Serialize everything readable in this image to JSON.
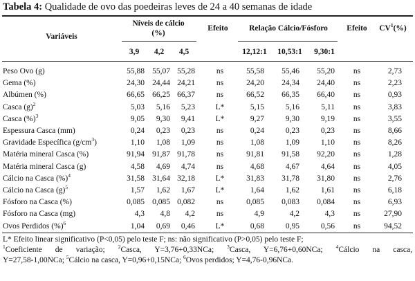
{
  "caption": {
    "label": "Tabela 4:",
    "text": "Qualidade de ovo das poedeiras leves de 24 a 40 semanas de idade"
  },
  "header": {
    "variaveis": "Variáveis",
    "niveis_line1": "Níveis de cálcio",
    "niveis_line2": "(%)",
    "efeito1": "Efeito",
    "relacao": "Relação Cálcio/Fósforo",
    "efeito2": "Efeito",
    "cv": "CV",
    "cv_sup": "1",
    "cv_suffix": "(%)",
    "cal_levels": [
      "3,9",
      "4,2",
      "4,5"
    ],
    "ratios": [
      "12,12:1",
      "10,53:1",
      "9,30:1"
    ]
  },
  "rows": [
    {
      "label": "Peso Ovo (g)",
      "sup": "",
      "ca": [
        "55,88",
        "55,07",
        "55,28"
      ],
      "ef1": "ns",
      "rel": [
        "55,58",
        "55,46",
        "55,20"
      ],
      "ef2": "ns",
      "cv": "2,73"
    },
    {
      "label": "Gema (%)",
      "sup": "",
      "ca": [
        "24,30",
        "24,44",
        "24,21"
      ],
      "ef1": "ns",
      "rel": [
        "24,20",
        "24,34",
        "24,40"
      ],
      "ef2": "ns",
      "cv": "2,23"
    },
    {
      "label": "Albúmen (%)",
      "sup": "",
      "ca": [
        "66,65",
        "66,25",
        "66,37"
      ],
      "ef1": "ns",
      "rel": [
        "66,52",
        "66,35",
        "66,40"
      ],
      "ef2": "ns",
      "cv": "0,93"
    },
    {
      "label": "Casca (g)",
      "sup": "2",
      "ca": [
        "5,03",
        "5,16",
        "5,23"
      ],
      "ef1": "L*",
      "rel": [
        "5,15",
        "5,16",
        "5,11"
      ],
      "ef2": "ns",
      "cv": "3,83"
    },
    {
      "label": "Casca (%)",
      "sup": "3",
      "ca": [
        "9,05",
        "9,30",
        "9,41"
      ],
      "ef1": "L*",
      "rel": [
        "9,27",
        "9,30",
        "9,19"
      ],
      "ef2": "ns",
      "cv": "3,55"
    },
    {
      "label": "Espessura Casca (mm)",
      "sup": "",
      "ca": [
        "0,24",
        "0,23",
        "0,23"
      ],
      "ef1": "ns",
      "rel": [
        "0,24",
        "0,23",
        "0,23"
      ],
      "ef2": "ns",
      "cv": "8,66"
    },
    {
      "label": "Gravidade Específica (g/cm",
      "sup": "3",
      "label_tail": ")",
      "ca": [
        "1,10",
        "1,08",
        "1,09"
      ],
      "ef1": "ns",
      "rel": [
        "1,08",
        "1,09",
        "1,10"
      ],
      "ef2": "ns",
      "cv": "8,26"
    },
    {
      "label": "Matéria mineral Casca (%)",
      "sup": "",
      "ca": [
        "91,94",
        "91,87",
        "91,78"
      ],
      "ef1": "ns",
      "rel": [
        "91,81",
        "91,58",
        "92,20"
      ],
      "ef2": "ns",
      "cv": "1,28"
    },
    {
      "label": "Matéria mineral Casca (g)",
      "sup": "",
      "ca": [
        "4,58",
        "4,69",
        "4,74"
      ],
      "ef1": "ns",
      "rel": [
        "4,68",
        "4,67",
        "4,64"
      ],
      "ef2": "ns",
      "cv": "4,05"
    },
    {
      "label": "Cálcio na Casca (%)",
      "sup": "4",
      "ca": [
        "31,58",
        "31,64",
        "32,18"
      ],
      "ef1": "L*",
      "rel": [
        "31,83",
        "31,78",
        "31,80"
      ],
      "ef2": "ns",
      "cv": "2,76"
    },
    {
      "label": "Cálcio na Casca (g)",
      "sup": "5",
      "ca": [
        "1,57",
        "1,62",
        "1,67"
      ],
      "ef1": "L*",
      "rel": [
        "1,64",
        "1,62",
        "1,61"
      ],
      "ef2": "ns",
      "cv": "6,18"
    },
    {
      "label": "Fósforo na Casca (%)",
      "sup": "",
      "ca": [
        "0,085",
        "0,085",
        "0,082"
      ],
      "ef1": "ns",
      "rel": [
        "0,085",
        "0,083",
        "0,084"
      ],
      "ef2": "ns",
      "cv": "6,93"
    },
    {
      "label": "Fósforo na Casca (mg)",
      "sup": "",
      "ca": [
        "4,3",
        "4,8",
        "4,2"
      ],
      "ef1": "ns",
      "rel": [
        "4,9",
        "4,2",
        "4,3"
      ],
      "ef2": "ns",
      "cv": "27,90"
    },
    {
      "label": "Ovos Perdidos (%)",
      "sup": "6",
      "ca": [
        "1,04",
        "0,69",
        "0,46"
      ],
      "ef1": "L*",
      "rel": [
        "0,68",
        "0,95",
        "0,56"
      ],
      "ef2": "ns",
      "cv": "94,52"
    }
  ],
  "notes": {
    "line1": "L* Efeito linear significativo (P<0,05) pelo teste F; ns: não significativo (P>0,05) pelo teste F;",
    "fn": [
      {
        "sup": "1",
        "text": "Coeficiente de variação; "
      },
      {
        "sup": "2",
        "text": "Casca, Y=3,76+0,33NCa; "
      },
      {
        "sup": "3",
        "text": "Casca, Y=6,76+0,60NCa; "
      },
      {
        "sup": "4",
        "text": "Cálcio na casca,"
      }
    ],
    "line3_start": "Y=27,58-1,00NCa; ",
    "fn2": [
      {
        "sup": "5",
        "text": "Cálcio na casca, Y=0,96+0,15NCa; "
      },
      {
        "sup": "6",
        "text": "Ovos perdidos; Y=4,76-0,96NCa."
      }
    ]
  }
}
